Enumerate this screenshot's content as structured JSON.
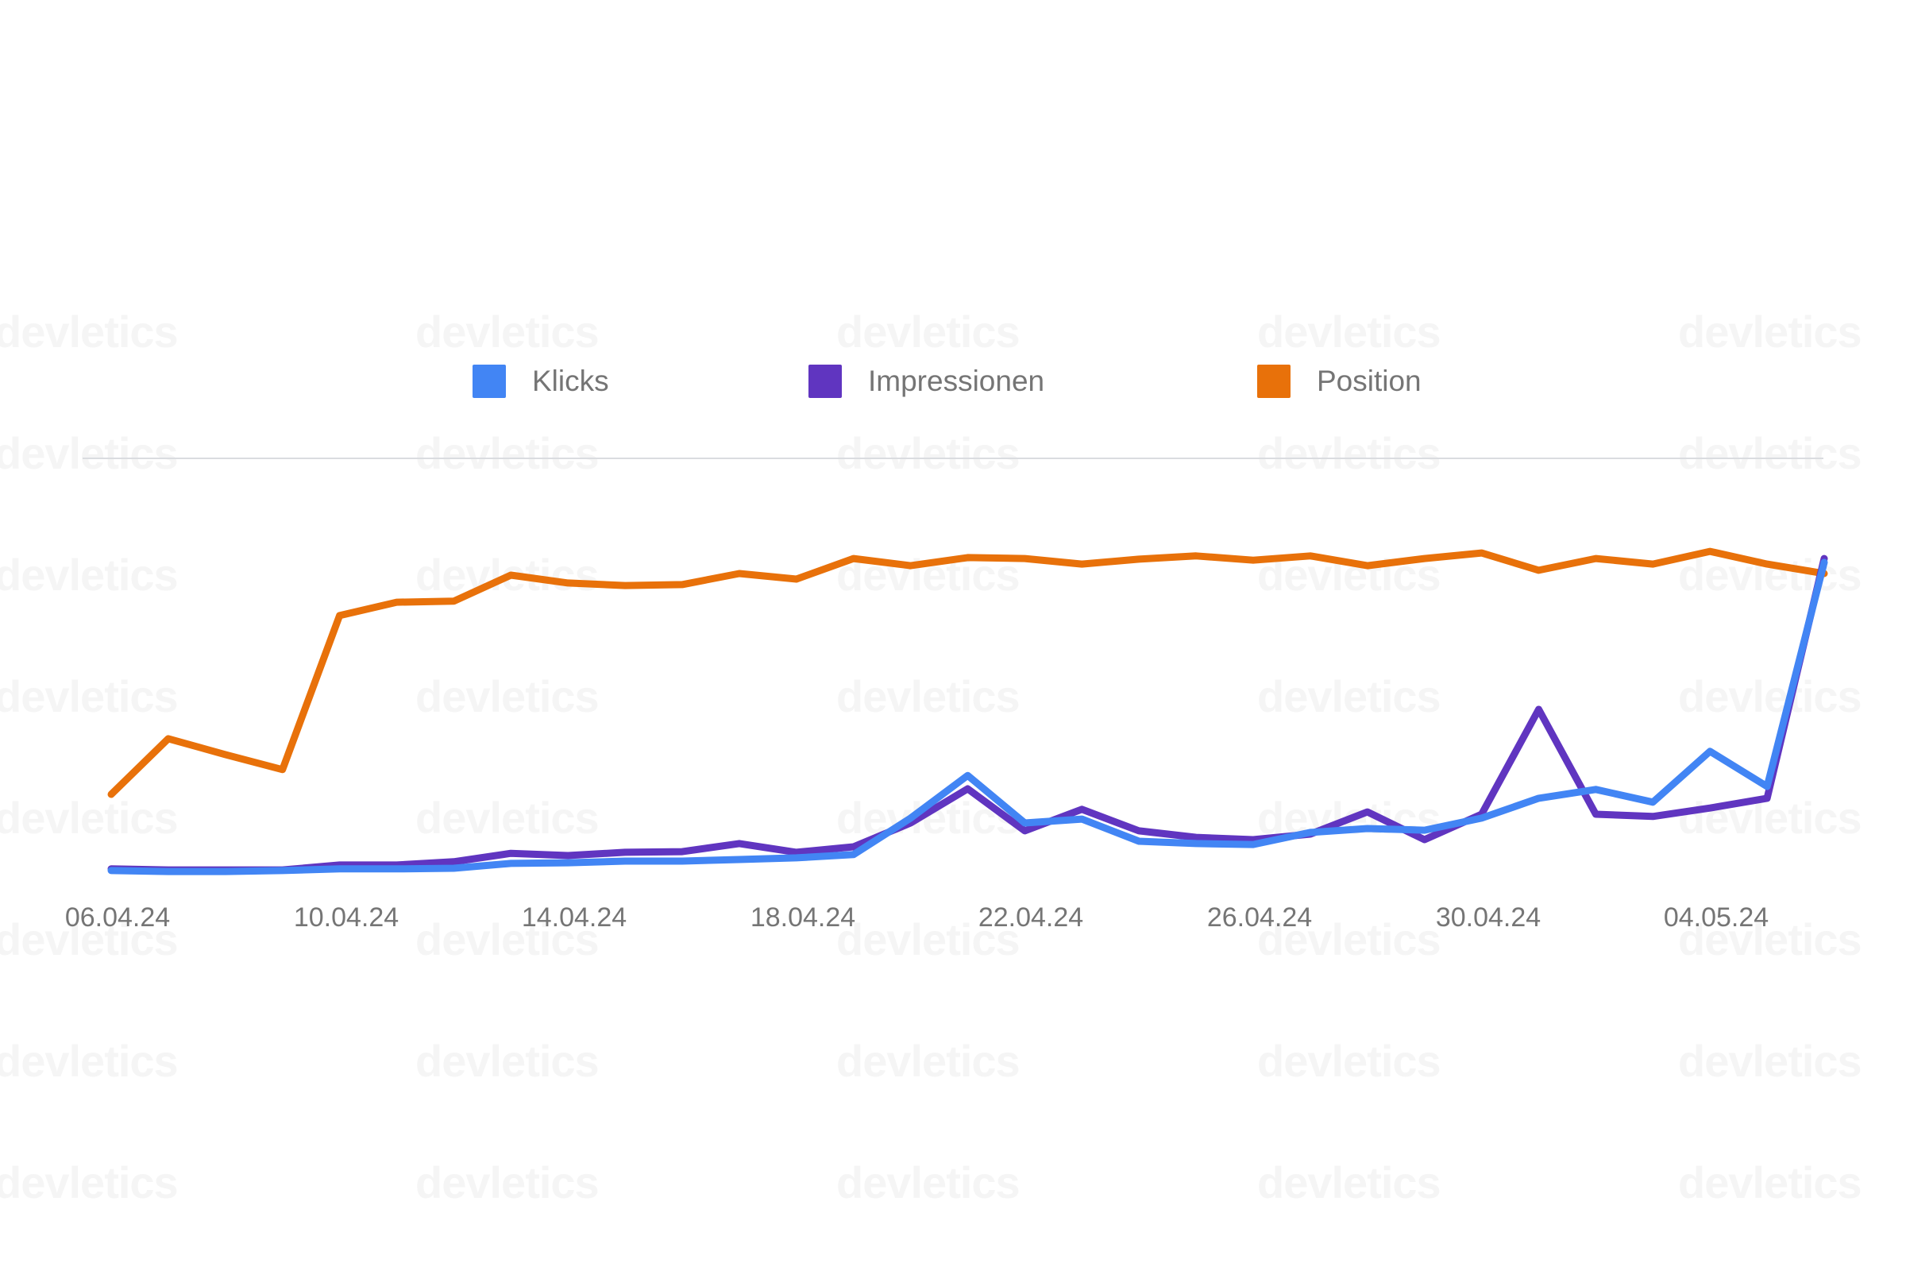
{
  "watermark": {
    "text": "devletics",
    "color": "#f5f5f5"
  },
  "legend": {
    "items": [
      {
        "label": "Klicks",
        "color": "#4285f4"
      },
      {
        "label": "Impressionen",
        "color": "#6035c0"
      },
      {
        "label": "Position",
        "color": "#e8710a"
      }
    ]
  },
  "colors": {
    "background": "#ffffff",
    "divider": "#dadce0",
    "axis_labels": "#757575",
    "legend_labels": "#757575",
    "klicks_line": "#4285f4",
    "impressionen_line": "#6035c0",
    "position_line": "#e8710a"
  },
  "chart_data": {
    "type": "line",
    "title": "",
    "xlabel": "",
    "ylabel": "",
    "grid": false,
    "y_axis_visible": false,
    "legend_position": "top",
    "note": "No y-axis is rendered in the source chart; series values are relative heights 0-100 (percent of plot height above baseline). Each series is independently normalized, Google-Search-Console style.",
    "x": [
      "06.04.24",
      "07.04.24",
      "08.04.24",
      "09.04.24",
      "10.04.24",
      "11.04.24",
      "12.04.24",
      "13.04.24",
      "14.04.24",
      "15.04.24",
      "16.04.24",
      "17.04.24",
      "18.04.24",
      "19.04.24",
      "20.04.24",
      "21.04.24",
      "22.04.24",
      "23.04.24",
      "24.04.24",
      "25.04.24",
      "26.04.24",
      "27.04.24",
      "28.04.24",
      "29.04.24",
      "30.04.24",
      "01.05.24",
      "02.05.24",
      "03.05.24",
      "04.05.24",
      "05.05.24",
      "06.05.24"
    ],
    "x_tick_labels": [
      "06.04.24",
      "10.04.24",
      "14.04.24",
      "18.04.24",
      "22.04.24",
      "26.04.24",
      "30.04.24",
      "04.05.24"
    ],
    "series": [
      {
        "name": "Klicks",
        "color": "#4285f4",
        "values": [
          1.0,
          0.7,
          0.7,
          1.0,
          1.5,
          1.5,
          1.7,
          3.2,
          3.4,
          3.9,
          3.9,
          4.4,
          4.9,
          5.9,
          17.1,
          30.2,
          15.6,
          16.8,
          10.0,
          9.3,
          9.0,
          12.7,
          13.9,
          13.4,
          17.1,
          23.2,
          25.9,
          22.0,
          37.6,
          26.8,
          95.6
        ]
      },
      {
        "name": "Impressionen",
        "color": "#6035c0",
        "values": [
          1.5,
          1.2,
          1.2,
          1.2,
          2.7,
          2.7,
          3.7,
          6.3,
          5.6,
          6.6,
          6.8,
          9.3,
          6.6,
          8.3,
          15.6,
          26.1,
          13.2,
          19.8,
          13.2,
          11.2,
          10.5,
          12.2,
          19.0,
          10.5,
          18.3,
          50.5,
          18.3,
          17.6,
          20.2,
          23.2,
          96.8
        ]
      },
      {
        "name": "Position",
        "color": "#e8710a",
        "values": [
          24.4,
          41.5,
          36.6,
          32.0,
          79.3,
          83.4,
          83.7,
          91.7,
          89.3,
          88.5,
          88.8,
          92.2,
          90.5,
          96.8,
          94.6,
          97.1,
          96.8,
          95.1,
          96.6,
          97.6,
          96.3,
          97.6,
          94.6,
          96.8,
          98.5,
          93.2,
          96.8,
          95.1,
          99.0,
          95.1,
          92.2
        ]
      }
    ]
  }
}
